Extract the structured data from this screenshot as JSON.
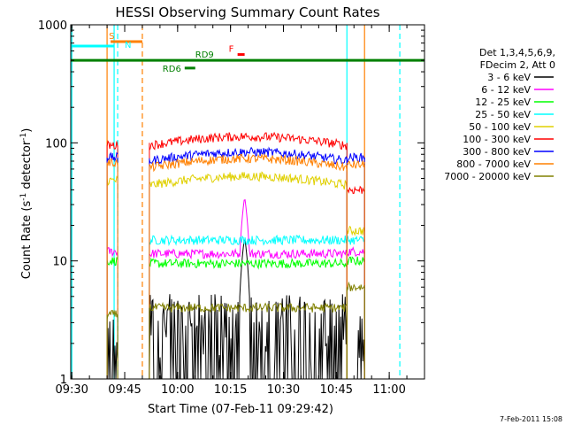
{
  "chart_data": {
    "type": "line",
    "title": "HESSI Observing Summary Count Rates",
    "xlabel": "Start Time (07-Feb-11 09:29:42)",
    "ylabel": "Count Rate (s",
    "ylabel_sup1": "-1",
    "ylabel_mid": " detector",
    "ylabel_sup2": "-1",
    "ylabel_end": ")",
    "footer": "7-Feb-2011 15:08",
    "y_scale": "log",
    "ylim": [
      1,
      1000
    ],
    "xlim": [
      "09:29:42",
      "11:10:00"
    ],
    "x_ticks": [
      "09:30",
      "09:45",
      "10:00",
      "10:15",
      "10:30",
      "10:45",
      "11:00"
    ],
    "y_ticks": [
      "1",
      "10",
      "100",
      "1000"
    ],
    "legend_header": [
      "Det 1,3,4,5,6,9,",
      "FDecim 2, Att 0"
    ],
    "series": [
      {
        "name": "3 - 6 keV",
        "color": "#000000",
        "segments": [
          {
            "start": "09:40",
            "end": "09:43",
            "level": 1.0
          },
          {
            "start": "09:52",
            "end": "10:48",
            "level": 1.5,
            "peak": {
              "time": "10:19",
              "value": 16
            }
          },
          {
            "start": "10:51",
            "end": "10:53",
            "level": 1.0
          }
        ]
      },
      {
        "name": "6 - 12 keV",
        "color": "#ff00ff",
        "segments": [
          {
            "start": "09:40",
            "end": "09:43",
            "level": 12
          },
          {
            "start": "09:52",
            "end": "10:48",
            "level": 11.5,
            "peak": {
              "time": "10:19",
              "value": 35
            }
          },
          {
            "start": "10:48",
            "end": "10:53",
            "level": 12
          }
        ]
      },
      {
        "name": "12 - 25 keV",
        "color": "#00ff00",
        "segments": [
          {
            "start": "09:40",
            "end": "09:43",
            "level": 10
          },
          {
            "start": "09:52",
            "end": "10:48",
            "level": 9.5
          },
          {
            "start": "10:48",
            "end": "10:53",
            "level": 10
          }
        ]
      },
      {
        "name": "25 - 50 keV",
        "color": "#00ffff",
        "segments": [
          {
            "start": "09:52",
            "end": "10:48",
            "level": 15
          },
          {
            "start": "10:48",
            "end": "10:53",
            "level": 15
          }
        ]
      },
      {
        "name": "50 - 100 keV",
        "color": "#e0d000",
        "segments": [
          {
            "start": "09:40",
            "end": "09:43",
            "level": 48
          },
          {
            "start": "09:52",
            "end": "10:48",
            "level": 46
          },
          {
            "start": "10:48",
            "end": "10:53",
            "level": 18
          }
        ]
      },
      {
        "name": "100 - 300 keV",
        "color": "#ff0000",
        "segments": [
          {
            "start": "09:40",
            "end": "09:43",
            "level": 95
          },
          {
            "start": "09:52",
            "end": "10:48",
            "level": 100
          },
          {
            "start": "10:48",
            "end": "10:53",
            "level": 40
          }
        ]
      },
      {
        "name": "300 - 800 keV",
        "color": "#0000ff",
        "segments": [
          {
            "start": "09:40",
            "end": "09:43",
            "level": 75
          },
          {
            "start": "09:52",
            "end": "10:48",
            "level": 74
          },
          {
            "start": "10:48",
            "end": "10:53",
            "level": 75
          }
        ]
      },
      {
        "name": "800 - 7000 keV",
        "color": "#ff8000",
        "segments": [
          {
            "start": "09:40",
            "end": "09:43",
            "level": 68
          },
          {
            "start": "09:52",
            "end": "10:48",
            "level": 65
          },
          {
            "start": "10:48",
            "end": "10:53",
            "level": 65
          }
        ]
      },
      {
        "name": "7000 - 20000 keV",
        "color": "#808000",
        "segments": [
          {
            "start": "09:40",
            "end": "09:43",
            "level": 3.5
          },
          {
            "start": "09:52",
            "end": "10:48",
            "level": 4
          },
          {
            "start": "10:48",
            "end": "10:53",
            "level": 6
          }
        ]
      }
    ],
    "flags": [
      {
        "label": "S",
        "color": "#ff8000",
        "start": "09:41",
        "end": "09:50",
        "level": 720
      },
      {
        "label": "N",
        "color": "#00ffff",
        "start": "09:29:42",
        "end": "09:42",
        "level": 660
      },
      {
        "label": "RD9",
        "color": "#008000",
        "start": "09:29:42",
        "end": "11:10",
        "level": 500
      },
      {
        "label": "RD6",
        "color": "#008000",
        "start": "10:02",
        "end": "10:05",
        "level": 430
      },
      {
        "label": "F",
        "color": "#ff0000",
        "start": "10:17",
        "end": "10:19",
        "level": 560
      }
    ],
    "vertical_markers": [
      {
        "time": "09:30",
        "color": "#00ffff",
        "style": "solid"
      },
      {
        "time": "09:40",
        "color": "#ff8000",
        "style": "solid"
      },
      {
        "time": "09:42",
        "color": "#00ffff",
        "style": "solid"
      },
      {
        "time": "09:43",
        "color": "#00ffff",
        "style": "dashed"
      },
      {
        "time": "09:50",
        "color": "#ff8000",
        "style": "dashed"
      },
      {
        "time": "10:48",
        "color": "#00ffff",
        "style": "solid"
      },
      {
        "time": "10:53",
        "color": "#ff8000",
        "style": "solid"
      },
      {
        "time": "11:03",
        "color": "#00ffff",
        "style": "dashed"
      }
    ]
  }
}
